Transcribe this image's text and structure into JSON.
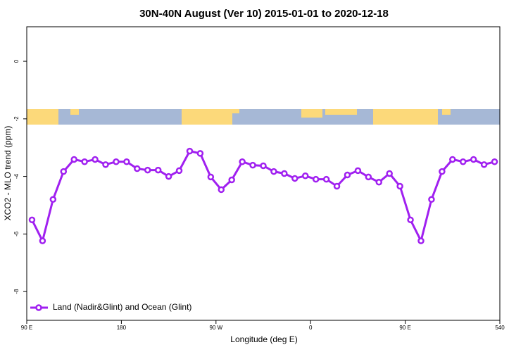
{
  "chart_data": {
    "type": "line",
    "title": "30N-40N August (Ver 10)   2015-01-01 to 2020-12-18",
    "x_label": "Longitude (deg E)",
    "y_label": "XCO2 - MLO trend (ppm)",
    "x": [
      95,
      105,
      115,
      125,
      135,
      145,
      155,
      165,
      175,
      185,
      195,
      205,
      215,
      225,
      235,
      245,
      255,
      265,
      275,
      285,
      295,
      305,
      315,
      325,
      335,
      345,
      355,
      365,
      375,
      385,
      395,
      405,
      415,
      425,
      435,
      445,
      455,
      465,
      475,
      485,
      495,
      505,
      515,
      525,
      535
    ],
    "series": [
      {
        "name": "Land (Nadir&Glint) and Ocean (Glint)",
        "color": "#a020f0",
        "values": [
          -5.51,
          -6.24,
          -4.8,
          -3.83,
          -3.41,
          -3.49,
          -3.41,
          -3.59,
          -3.49,
          -3.49,
          -3.73,
          -3.78,
          -3.78,
          -4.0,
          -3.8,
          -3.12,
          -3.2,
          -4.02,
          -4.46,
          -4.12,
          -3.49,
          -3.61,
          -3.63,
          -3.83,
          -3.9,
          -4.07,
          -3.98,
          -4.1,
          -4.1,
          -4.34,
          -3.95,
          -3.8,
          -4.02,
          -4.2,
          -3.9,
          -4.34,
          -5.51,
          -6.24,
          -4.8,
          -3.83,
          -3.41,
          -3.49,
          -3.41,
          -3.59,
          -3.49
        ]
      }
    ],
    "xlim": [
      90,
      540
    ],
    "xticks": [
      {
        "value": 90,
        "label": "90 E"
      },
      180,
      {
        "value": 270,
        "label": "90 W"
      },
      {
        "value": 360,
        "label": "0"
      },
      {
        "value": 450,
        "label": "90 E"
      },
      540
    ],
    "ylim": [
      -9,
      1.2
    ],
    "yticks": [
      0,
      -2,
      -4,
      -6,
      -8
    ],
    "legend": "bottom-left"
  }
}
